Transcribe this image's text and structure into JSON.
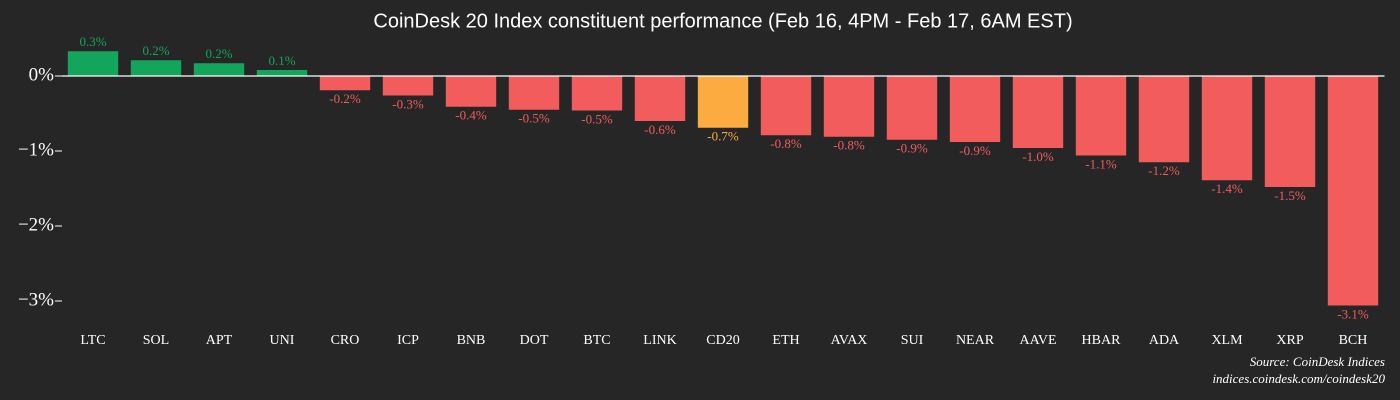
{
  "chart_data": {
    "type": "bar",
    "title": "CoinDesk 20 Index constituent performance (Feb 16, 4PM - Feb 17, 6AM EST)",
    "categories": [
      "LTC",
      "SOL",
      "APT",
      "UNI",
      "CRO",
      "ICP",
      "BNB",
      "DOT",
      "BTC",
      "LINK",
      "CD20",
      "ETH",
      "AVAX",
      "SUI",
      "NEAR",
      "AAVE",
      "HBAR",
      "ADA",
      "XLM",
      "XRP",
      "BCH"
    ],
    "values": [
      0.33,
      0.21,
      0.17,
      0.08,
      -0.19,
      -0.26,
      -0.41,
      -0.45,
      -0.46,
      -0.6,
      -0.69,
      -0.79,
      -0.81,
      -0.85,
      -0.88,
      -0.96,
      -1.06,
      -1.15,
      -1.39,
      -1.48,
      -3.06
    ],
    "value_labels": [
      "0.3%",
      "0.2%",
      "0.2%",
      "0.1%",
      "-0.2%",
      "-0.3%",
      "-0.4%",
      "-0.5%",
      "-0.5%",
      "-0.6%",
      "-0.7%",
      "-0.8%",
      "-0.8%",
      "-0.9%",
      "-0.9%",
      "-1.0%",
      "-1.1%",
      "-1.2%",
      "-1.4%",
      "-1.5%",
      "-3.1%"
    ],
    "colors": [
      "#14a55c",
      "#14a55c",
      "#14a55c",
      "#14a55c",
      "#f25c5c",
      "#f25c5c",
      "#f25c5c",
      "#f25c5c",
      "#f25c5c",
      "#f25c5c",
      "#fbab3f",
      "#f25c5c",
      "#f25c5c",
      "#f25c5c",
      "#f25c5c",
      "#f25c5c",
      "#f25c5c",
      "#f25c5c",
      "#f25c5c",
      "#f25c5c",
      "#f25c5c"
    ],
    "ylim": [
      -3.25,
      0.5
    ],
    "yticks": [
      {
        "value": -3,
        "label": "−3%"
      },
      {
        "value": -2,
        "label": "−2%"
      },
      {
        "value": -1,
        "label": "−1%"
      },
      {
        "value": 0,
        "label": "0%"
      }
    ],
    "source": "Source: CoinDesk Indices",
    "source_url": "indices.coindesk.com/coindesk20"
  }
}
